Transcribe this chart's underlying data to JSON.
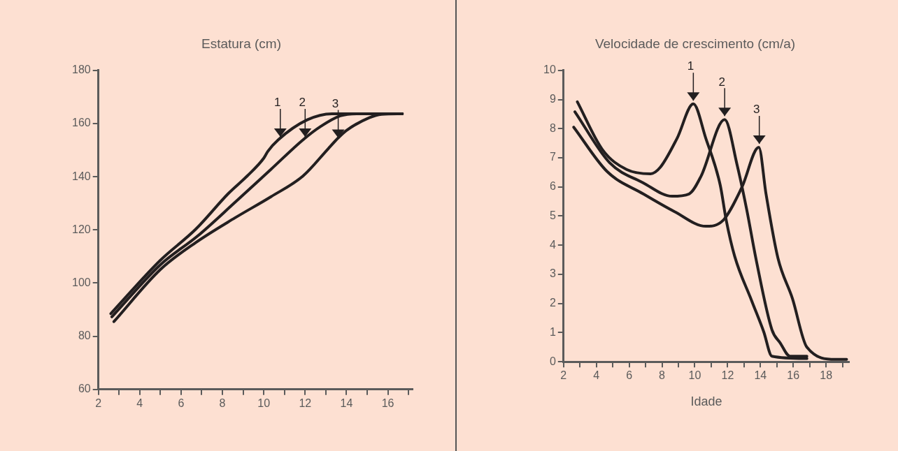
{
  "chart_data": [
    {
      "type": "line",
      "title": "Estatura (cm)",
      "marker": "none",
      "line_style": "solid",
      "grid": false,
      "xlim": [
        2,
        17.2
      ],
      "ylim": [
        60,
        180
      ],
      "xticks": [
        2,
        {
          "value": 3,
          "label": null
        },
        4,
        {
          "value": 5,
          "label": null
        },
        6,
        {
          "value": 7,
          "label": null
        },
        8,
        {
          "value": 9,
          "label": null
        },
        10,
        {
          "value": 11,
          "label": null
        },
        12,
        {
          "value": 13,
          "label": null
        },
        14,
        {
          "value": 15,
          "label": null
        },
        16,
        {
          "value": 17,
          "label": null
        }
      ],
      "yticks": [
        60,
        80,
        100,
        120,
        140,
        160,
        180
      ],
      "series": [
        {
          "color": "#231f20",
          "x": [
            2.6,
            5.0,
            6.7,
            8.3,
            9.2,
            10.0,
            10.2,
            10.7,
            12.1,
            13.3,
            16.7
          ],
          "values": [
            88.5,
            108.6,
            120.2,
            133.8,
            140.3,
            147,
            149.6,
            153.9,
            161.4,
            163.7,
            163.7
          ]
        },
        {
          "color": "#231f20",
          "x": [
            2.65,
            5.0,
            6.8,
            8.6,
            10.35,
            11.9,
            12.75,
            13.7,
            14.5,
            16.7
          ],
          "values": [
            87.3,
            106.9,
            117.7,
            130.3,
            142.8,
            153.9,
            158.9,
            162.9,
            163.7,
            163.7
          ]
        },
        {
          "color": "#231f20",
          "x": [
            2.75,
            5.0,
            6.7,
            8.6,
            10.35,
            11.9,
            13.1,
            13.6,
            14.0,
            15.1,
            15.7,
            16.7
          ],
          "values": [
            85.5,
            105.1,
            115.2,
            124.5,
            132.5,
            140.3,
            150.4,
            154.6,
            157.4,
            162.2,
            163.5,
            163.7
          ]
        }
      ],
      "annotations": [
        {
          "text": "1",
          "x": 10.8,
          "y": 155
        },
        {
          "text": "2",
          "x": 12.0,
          "y": 155
        },
        {
          "text": "3",
          "x": 13.6,
          "y": 154.6
        }
      ]
    },
    {
      "type": "line",
      "title": "Velocidade de crescimento (cm/a)",
      "xlabel": "Idade",
      "marker": "none",
      "line_style": "solid",
      "grid": false,
      "xlim": [
        2,
        19.4
      ],
      "ylim": [
        0,
        10
      ],
      "xticks": [
        2,
        {
          "value": 3,
          "label": null
        },
        4,
        {
          "value": 5,
          "label": null
        },
        6,
        {
          "value": 7,
          "label": null
        },
        8,
        {
          "value": 9,
          "label": null
        },
        10,
        {
          "value": 11,
          "label": null
        },
        12,
        {
          "value": 13,
          "label": null
        },
        14,
        {
          "value": 15,
          "label": null
        },
        16,
        {
          "value": 17,
          "label": null
        },
        18,
        {
          "value": 19,
          "label": null
        }
      ],
      "yticks": [
        0,
        1,
        2,
        3,
        4,
        5,
        6,
        7,
        8,
        9,
        10
      ],
      "series": [
        {
          "color": "#231f20",
          "x": [
            2.84,
            4.37,
            5.84,
            7.3,
            7.89,
            8.92,
            9.91,
            10.67,
            11.55,
            11.92,
            12.43,
            13.46,
            14.2,
            14.7,
            16.83
          ],
          "values": [
            8.92,
            7.28,
            6.6,
            6.45,
            6.67,
            7.67,
            8.85,
            7.67,
            6.06,
            4.84,
            3.62,
            2.1,
            1.03,
            0.19,
            0.11
          ]
        },
        {
          "color": "#231f20",
          "x": [
            2.69,
            4.81,
            6.86,
            8.62,
            9.65,
            10.38,
            11.82,
            12.58,
            13.16,
            13.75,
            14.7,
            15.2,
            15.8,
            16.83
          ],
          "values": [
            8.58,
            6.83,
            6.14,
            5.68,
            5.76,
            6.37,
            8.31,
            6.75,
            5.23,
            3.47,
            1.1,
            0.65,
            0.19,
            0.19
          ]
        },
        {
          "color": "#231f20",
          "x": [
            2.62,
            4.67,
            6.86,
            8.77,
            10.67,
            11.7,
            12.87,
            13.9,
            14.34,
            15.07,
            15.95,
            16.83,
            18.59,
            19.25
          ],
          "values": [
            8.05,
            6.52,
            5.76,
            5.15,
            4.65,
            4.84,
            5.99,
            7.36,
            5.76,
            3.55,
            2.17,
            0.5,
            0.08,
            0.08
          ]
        }
      ],
      "annotations": [
        {
          "text": "1",
          "x": 9.91,
          "y": 8.96
        },
        {
          "text": "2",
          "x": 11.82,
          "y": 8.43
        },
        {
          "text": "3",
          "x": 13.93,
          "y": 7.48
        }
      ]
    }
  ]
}
